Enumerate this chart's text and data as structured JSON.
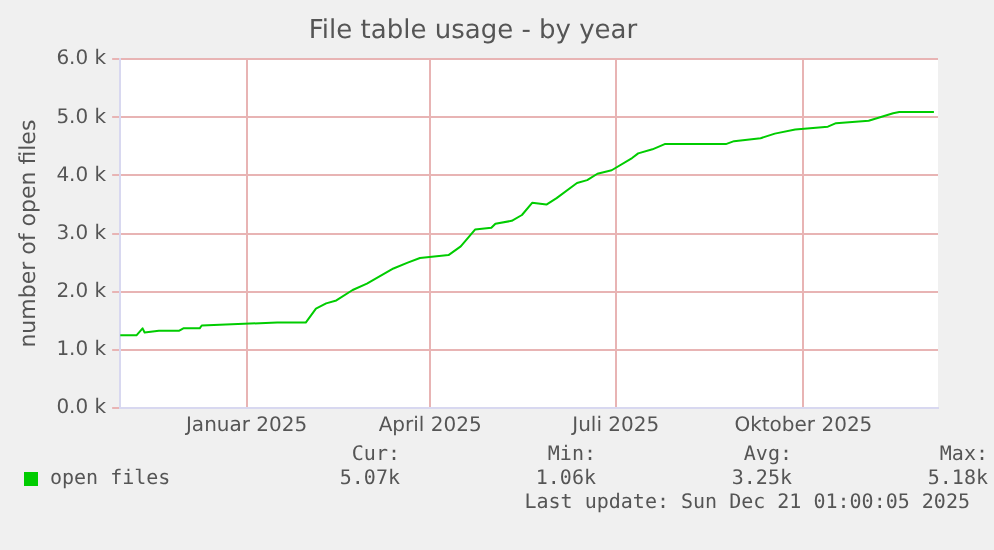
{
  "chart_data": {
    "type": "line",
    "title": "File table usage - by year",
    "ylabel": "number of open files",
    "x": [
      "2024-11-15",
      "2024-11-23",
      "2024-11-26",
      "2024-11-27",
      "2024-12-04",
      "2024-12-14",
      "2024-12-16",
      "2024-12-24",
      "2024-12-25",
      "2025-01-31",
      "2025-02-14",
      "2025-02-19",
      "2025-02-24",
      "2025-03-01",
      "2025-03-09",
      "2025-03-16",
      "2025-03-29",
      "2025-04-05",
      "2025-04-11",
      "2025-04-25",
      "2025-05-01",
      "2025-05-08",
      "2025-05-16",
      "2025-05-18",
      "2025-05-26",
      "2025-05-31",
      "2025-06-05",
      "2025-06-12",
      "2025-06-17",
      "2025-06-27",
      "2025-07-02",
      "2025-07-07",
      "2025-07-14",
      "2025-07-24",
      "2025-07-27",
      "2025-08-03",
      "2025-08-09",
      "2025-09-08",
      "2025-09-12",
      "2025-09-25",
      "2025-10-02",
      "2025-10-12",
      "2025-10-28",
      "2025-11-01",
      "2025-11-17",
      "2025-11-29",
      "2025-12-02",
      "2025-12-19"
    ],
    "series": [
      {
        "name": "open files",
        "color": "#00cc00",
        "values": [
          1250,
          1250,
          1370,
          1300,
          1330,
          1330,
          1370,
          1370,
          1420,
          1470,
          1470,
          1710,
          1800,
          1850,
          2030,
          2140,
          2400,
          2500,
          2580,
          2630,
          2780,
          3070,
          3100,
          3170,
          3220,
          3320,
          3530,
          3500,
          3610,
          3870,
          3920,
          4030,
          4090,
          4300,
          4380,
          4450,
          4540,
          4540,
          4590,
          4640,
          4720,
          4790,
          4840,
          4900,
          4940,
          5070,
          5090,
          5090
        ]
      }
    ],
    "xlim": [
      "2024-11-15",
      "2025-12-21"
    ],
    "xticks": [
      {
        "value": "2025-01-16",
        "label": "Januar 2025"
      },
      {
        "value": "2025-04-16",
        "label": "April 2025"
      },
      {
        "value": "2025-07-16",
        "label": "Juli 2025"
      },
      {
        "value": "2025-10-16",
        "label": "Oktober 2025"
      }
    ],
    "ylim": [
      0,
      6000
    ],
    "yticks": [
      {
        "value": 0,
        "label": "0.0 k"
      },
      {
        "value": 1000,
        "label": "1.0 k"
      },
      {
        "value": 2000,
        "label": "2.0 k"
      },
      {
        "value": 3000,
        "label": "3.0 k"
      },
      {
        "value": 4000,
        "label": "4.0 k"
      },
      {
        "value": 5000,
        "label": "5.0 k"
      },
      {
        "value": 6000,
        "label": "6.0 k"
      }
    ],
    "grid": true,
    "legend": "bottom left",
    "marker": "none",
    "line_style": "solid",
    "annotations": [
      "Cur:",
      "Min:",
      "Avg:",
      "Max:",
      "5.07k",
      "1.06k",
      "3.25k",
      "5.18k",
      "Last update: Sun Dec 21 01:00:05 2025"
    ]
  }
}
